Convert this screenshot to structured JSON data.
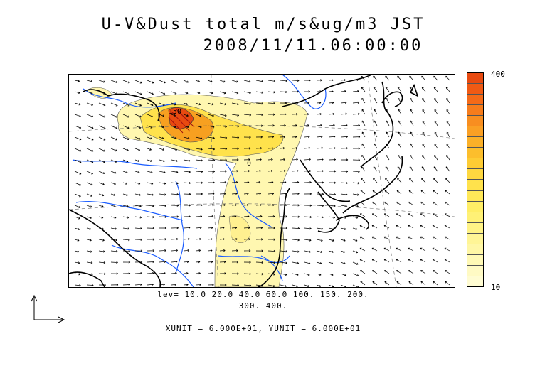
{
  "title": {
    "line1": "U-V&Dust total m/s&ug/m3 JST",
    "line2": "2008/11/11.06:00:00"
  },
  "colorbar": {
    "top_label": "400",
    "bottom_label": "10",
    "colors": [
      "#e84a10",
      "#f05a14",
      "#f46a18",
      "#f67c1c",
      "#f88e20",
      "#faa024",
      "#fbb028",
      "#fcbe2c",
      "#fdcc34",
      "#fed840",
      "#ffe24c",
      "#ffe858",
      "#ffee66",
      "#fff176",
      "#fff386",
      "#fff596",
      "#fff7a6",
      "#fff9b6",
      "#fffac4",
      "#fffcd2"
    ]
  },
  "contour_levels": {
    "line1": "lev= 10.0 20.0 40.0 60.0 100. 150. 200.",
    "line2": "300. 400."
  },
  "contour_labels": [
    "150",
    "0"
  ],
  "units": "XUNIT = 6.000E+01, YUNIT = 6.000E+01",
  "colors": {
    "coastline": "#000000",
    "rivers": "#1a5cff",
    "dust_low": "#fff7b0",
    "dust_mid": "#ffe24c",
    "dust_high": "#f7a020",
    "dust_max": "#e84a10"
  }
}
